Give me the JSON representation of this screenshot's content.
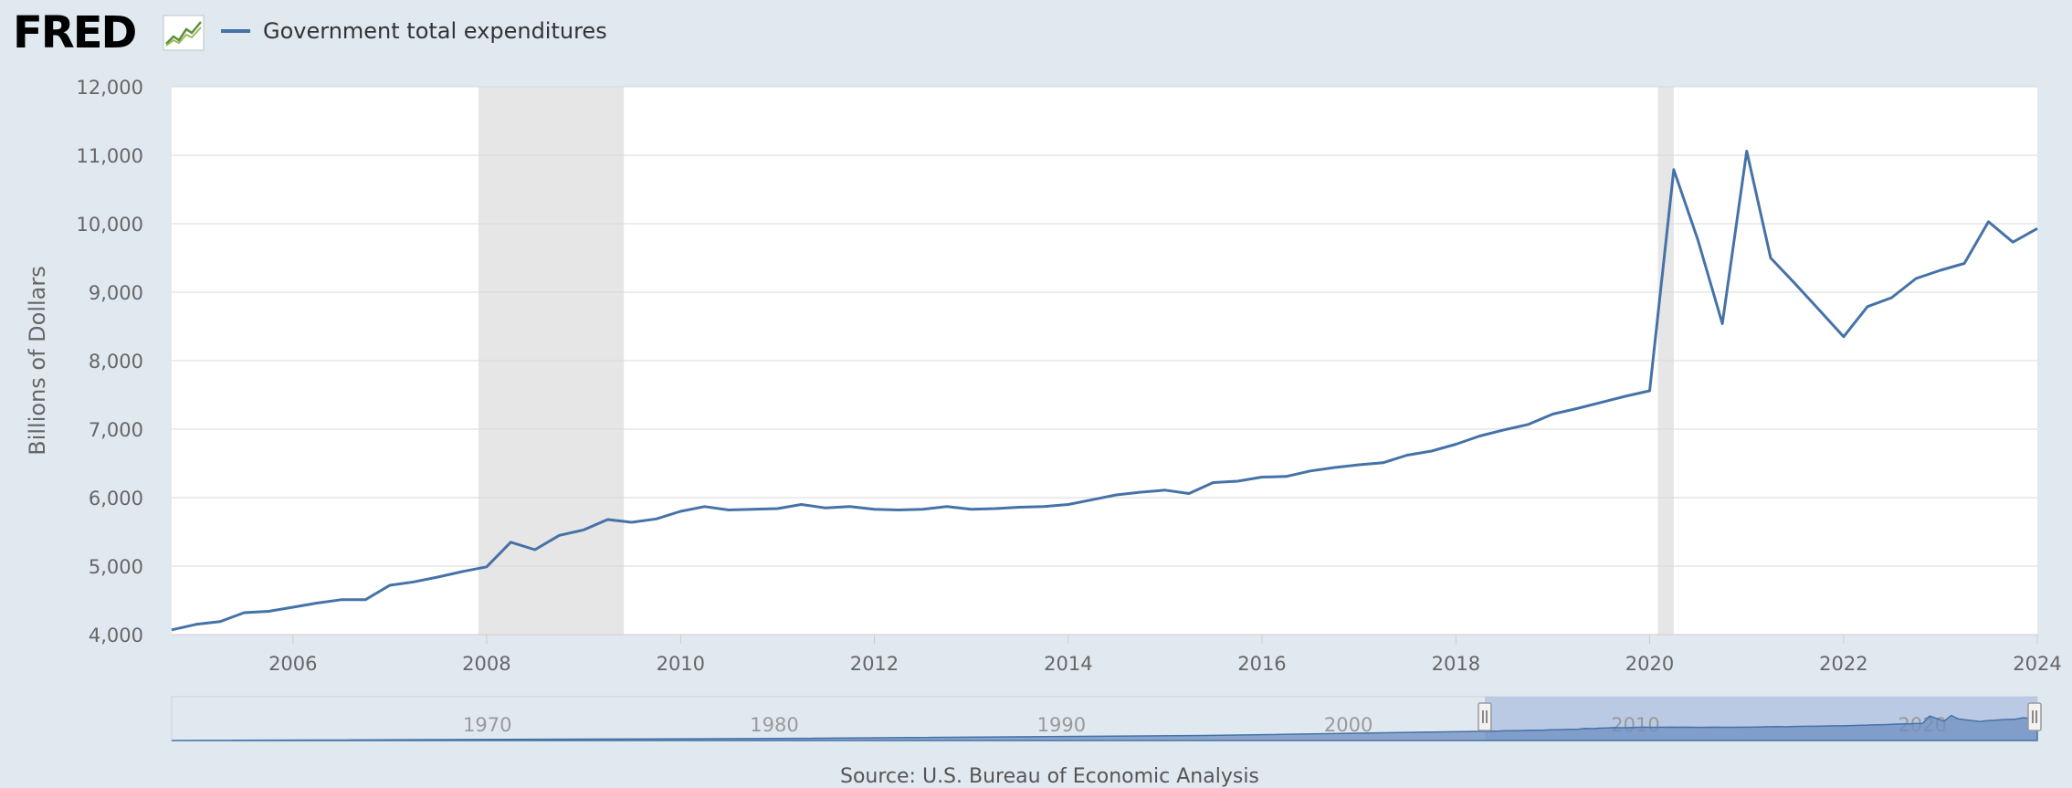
{
  "header": {
    "logo_text": "FRED",
    "logo_icon": "chart-line-icon",
    "legend_label": "Government total expenditures"
  },
  "source_text": "Source: U.S. Bureau of Economic Analysis",
  "chart_data": {
    "type": "line",
    "title": "",
    "xlabel": "",
    "ylabel": "Billions of Dollars",
    "ylim": [
      4000,
      12000
    ],
    "xlim": [
      "2004-10-01",
      "2024-01-01"
    ],
    "yticks": [
      "4,000",
      "5,000",
      "6,000",
      "7,000",
      "8,000",
      "9,000",
      "10,000",
      "11,000",
      "12,000"
    ],
    "xticks": [
      "2006",
      "2008",
      "2010",
      "2012",
      "2014",
      "2016",
      "2018",
      "2020",
      "2022",
      "2024"
    ],
    "grid": true,
    "legend": "top-left",
    "recessions": [
      {
        "start": "2007-12-01",
        "end": "2009-06-01"
      },
      {
        "start": "2020-02-01",
        "end": "2020-04-01"
      }
    ],
    "series": [
      {
        "name": "Government total expenditures",
        "color": "#4572a7",
        "x": [
          "2004-10-01",
          "2005-01-01",
          "2005-04-01",
          "2005-07-01",
          "2005-10-01",
          "2006-01-01",
          "2006-04-01",
          "2006-07-01",
          "2006-10-01",
          "2007-01-01",
          "2007-04-01",
          "2007-07-01",
          "2007-10-01",
          "2008-01-01",
          "2008-04-01",
          "2008-07-01",
          "2008-10-01",
          "2009-01-01",
          "2009-04-01",
          "2009-07-01",
          "2009-10-01",
          "2010-01-01",
          "2010-04-01",
          "2010-07-01",
          "2010-10-01",
          "2011-01-01",
          "2011-04-01",
          "2011-07-01",
          "2011-10-01",
          "2012-01-01",
          "2012-04-01",
          "2012-07-01",
          "2012-10-01",
          "2013-01-01",
          "2013-04-01",
          "2013-07-01",
          "2013-10-01",
          "2014-01-01",
          "2014-04-01",
          "2014-07-01",
          "2014-10-01",
          "2015-01-01",
          "2015-04-01",
          "2015-07-01",
          "2015-10-01",
          "2016-01-01",
          "2016-04-01",
          "2016-07-01",
          "2016-10-01",
          "2017-01-01",
          "2017-04-01",
          "2017-07-01",
          "2017-10-01",
          "2018-01-01",
          "2018-04-01",
          "2018-07-01",
          "2018-10-01",
          "2019-01-01",
          "2019-04-01",
          "2019-07-01",
          "2019-10-01",
          "2020-01-01",
          "2020-04-01",
          "2020-07-01",
          "2020-10-01",
          "2021-01-01",
          "2021-04-01",
          "2021-07-01",
          "2021-10-01",
          "2022-01-01",
          "2022-04-01",
          "2022-07-01",
          "2022-10-01",
          "2023-01-01",
          "2023-04-01",
          "2023-07-01",
          "2023-10-01",
          "2024-01-01"
        ],
        "values": [
          4070,
          4150,
          4190,
          4320,
          4340,
          4400,
          4460,
          4510,
          4510,
          4720,
          4770,
          4840,
          4920,
          4990,
          5350,
          5240,
          5450,
          5530,
          5680,
          5640,
          5690,
          5800,
          5870,
          5820,
          5830,
          5840,
          5900,
          5850,
          5870,
          5830,
          5820,
          5830,
          5870,
          5830,
          5840,
          5860,
          5870,
          5900,
          5970,
          6040,
          6080,
          6110,
          6060,
          6220,
          6240,
          6300,
          6310,
          6390,
          6440,
          6480,
          6510,
          6620,
          6680,
          6780,
          6900,
          6990,
          7070,
          7220,
          7300,
          7390,
          7480,
          7560,
          10790,
          9760,
          8540,
          11060,
          9500,
          9130,
          8740,
          8350,
          8790,
          8920,
          9200,
          9320,
          9420,
          10030,
          9730,
          9930
        ]
      }
    ],
    "navigator": {
      "xticks": [
        "1970",
        "1980",
        "1990",
        "2000",
        "2010",
        "2020"
      ],
      "selected_start": "2004-10-01",
      "selected_end": "2024-01-01"
    }
  }
}
